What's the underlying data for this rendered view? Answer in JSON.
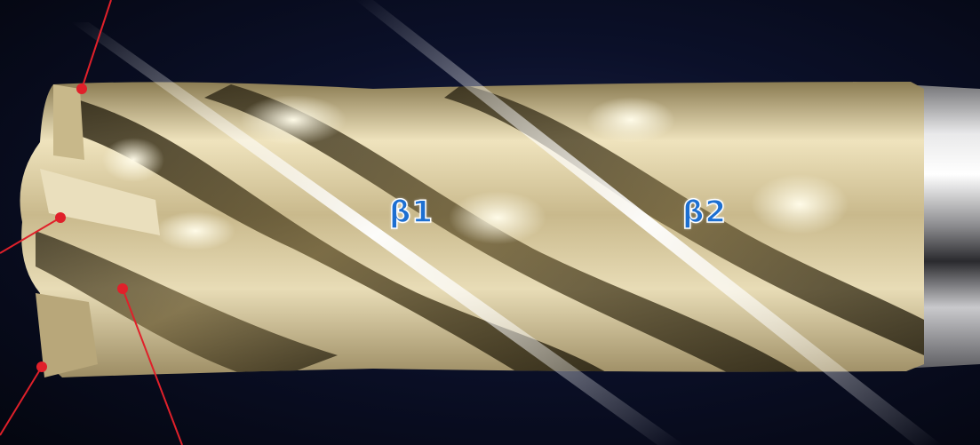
{
  "angle_labels": {
    "beta1": "β1",
    "beta2": "β2"
  },
  "colors": {
    "background": "#050716",
    "label_fill": "#1d6fd1",
    "label_outline": "#ffffff",
    "callout": "#e0202a",
    "tool_metal": "#d8c79a"
  }
}
